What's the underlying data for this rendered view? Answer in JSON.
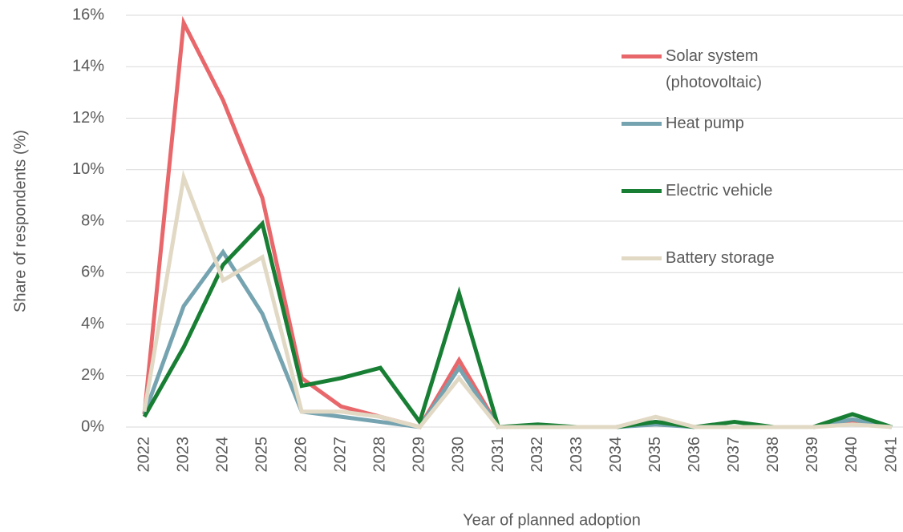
{
  "chart_data": {
    "type": "line",
    "xlabel": "Year of planned adoption",
    "ylabel": "Share of respondents (%)",
    "categories": [
      "2022",
      "2023",
      "2024",
      "2025",
      "2026",
      "2027",
      "2028",
      "2029",
      "2030",
      "2031",
      "2032",
      "2033",
      "2034",
      "2035",
      "2036",
      "2037",
      "2038",
      "2039",
      "2040",
      "2041"
    ],
    "series": [
      {
        "name": "Solar system (photovoltaic)",
        "color": "#e8676b",
        "values": [
          0.5,
          15.7,
          12.7,
          8.9,
          1.9,
          0.8,
          0.4,
          0,
          2.6,
          0,
          0,
          0,
          0,
          0.2,
          0,
          0,
          0,
          0,
          0.2,
          0
        ]
      },
      {
        "name": "Heat pump",
        "color": "#75a3b0",
        "values": [
          0.5,
          4.7,
          6.8,
          4.4,
          0.6,
          0.4,
          0.2,
          0,
          2.3,
          0,
          0,
          0,
          0,
          0.1,
          0,
          0,
          0,
          0,
          0.3,
          0
        ]
      },
      {
        "name": "Electric vehicle",
        "color": "#177e33",
        "values": [
          0.4,
          3.1,
          6.3,
          7.9,
          1.6,
          1.9,
          2.3,
          0.2,
          5.2,
          0,
          0.1,
          0,
          0,
          0.2,
          0,
          0.2,
          0,
          0,
          0.5,
          0
        ]
      },
      {
        "name": "Battery storage",
        "color": "#e2d9c5",
        "values": [
          0.6,
          9.7,
          5.7,
          6.6,
          0.6,
          0.6,
          0.4,
          0,
          1.9,
          0,
          0,
          0,
          0,
          0.4,
          0,
          0,
          0,
          0,
          0.1,
          0
        ]
      }
    ],
    "ylim": [
      0,
      16
    ],
    "yticks": [
      {
        "value": 0,
        "label": "0%"
      },
      {
        "value": 2,
        "label": "2%"
      },
      {
        "value": 4,
        "label": "4%"
      },
      {
        "value": 6,
        "label": "6%"
      },
      {
        "value": 8,
        "label": "8%"
      },
      {
        "value": 10,
        "label": "10%"
      },
      {
        "value": 12,
        "label": "12%"
      },
      {
        "value": 14,
        "label": "14%"
      },
      {
        "value": 16,
        "label": "16%"
      }
    ],
    "grid": true
  }
}
